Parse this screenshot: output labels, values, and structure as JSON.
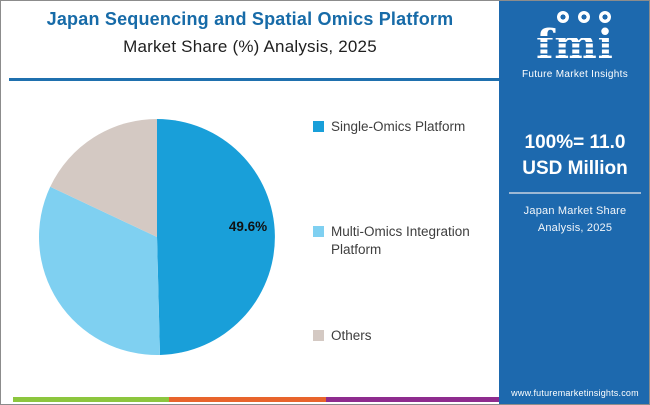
{
  "header": {
    "title_line1": "Japan Sequencing and Spatial Omics Platform",
    "title_line2": "Market Share (%) Analysis, 2025"
  },
  "chart_data": {
    "type": "pie",
    "title": "Japan Sequencing and Spatial Omics Platform Market Share (%) Analysis, 2025",
    "categories": [
      "Single-Omics Platform",
      "Multi-Omics Integration Platform",
      "Others"
    ],
    "values": [
      49.6,
      32.4,
      18.0
    ],
    "colors": [
      "#199fd9",
      "#7fd0f1",
      "#d4c9c3"
    ],
    "data_label": "49.6%",
    "start_angle_deg": 0,
    "direction": "clockwise",
    "legend_position": "right"
  },
  "sidebar": {
    "background_color": "#1d69ae",
    "brand": {
      "logo_text": "fmi",
      "logo_subtext": "Future Market Insights"
    },
    "stat_line1": "100%= 11.0",
    "stat_line2": "USD Million",
    "caption_line1": "Japan Market Share",
    "caption_line2": "Analysis, 2025",
    "website": "www.futuremarketinsights.com"
  },
  "footer_stripe": {
    "green": "#8cc63e",
    "orange": "#e8642c",
    "purple": "#8e2c8e"
  }
}
